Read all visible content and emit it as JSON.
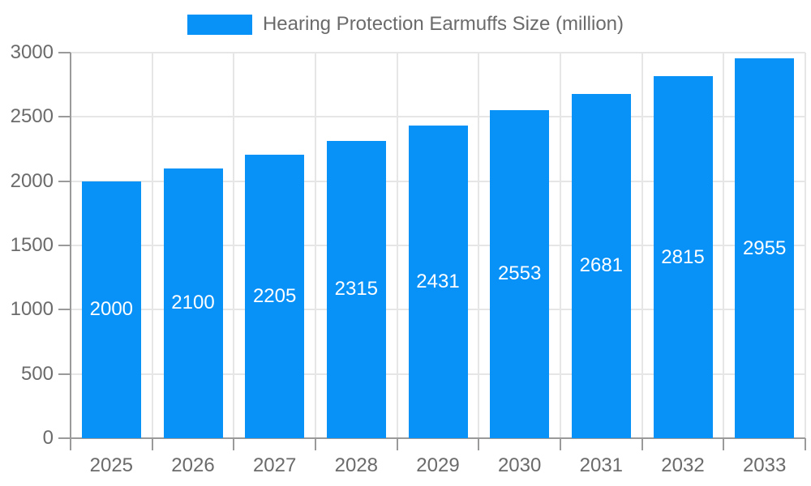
{
  "legend": {
    "label": "Hearing Protection Earmuffs Size (million)"
  },
  "colors": {
    "bar": "#0891f7",
    "grid": "#e6e6e6",
    "axis": "#9a9a9a",
    "text": "#6b6b6b",
    "bar_label": "#ffffff"
  },
  "chart_data": {
    "type": "bar",
    "title": "Hearing Protection Earmuffs Size (million)",
    "categories": [
      "2025",
      "2026",
      "2027",
      "2028",
      "2029",
      "2030",
      "2031",
      "2032",
      "2033"
    ],
    "series": [
      {
        "name": "Hearing Protection Earmuffs Size (million)",
        "values": [
          2000,
          2100,
          2205,
          2315,
          2431,
          2553,
          2681,
          2815,
          2955
        ]
      }
    ],
    "xlabel": "",
    "ylabel": "",
    "ylim": [
      0,
      3000
    ],
    "yticks": [
      0,
      500,
      1000,
      1500,
      2000,
      2500,
      3000
    ],
    "grid": true,
    "legend_position": "top",
    "data_labels": "centered-inside-bars"
  }
}
